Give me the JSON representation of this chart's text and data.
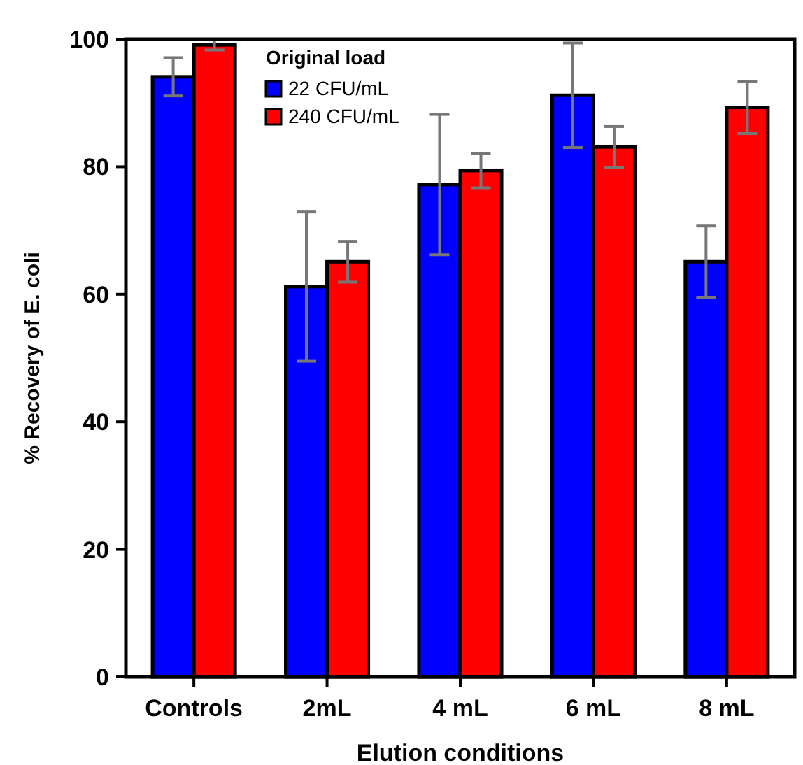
{
  "chart_data": {
    "type": "bar",
    "xlabel": "Elution conditions",
    "ylabel": "% Recovery of E. coli",
    "legend_title": "Original load",
    "categories": [
      "Controls",
      "2mL",
      "4 mL",
      "6 mL",
      "8 mL"
    ],
    "series": [
      {
        "name": "22 CFU/mL",
        "color": "#0000ff",
        "values": [
          94.1,
          61.2,
          77.2,
          91.2,
          65.1
        ],
        "errors": [
          3,
          11.7,
          11,
          8.2,
          5.6
        ]
      },
      {
        "name": "240 CFU/mL",
        "color": "#ff0000",
        "values": [
          99.1,
          65.1,
          79.4,
          83.1,
          89.3
        ],
        "errors": [
          0.8,
          3.2,
          2.7,
          3.2,
          4.1
        ]
      }
    ],
    "ylim": [
      0,
      100
    ],
    "yticks": [
      0,
      20,
      40,
      60,
      80,
      100
    ],
    "legend": "top left",
    "grid": false
  }
}
